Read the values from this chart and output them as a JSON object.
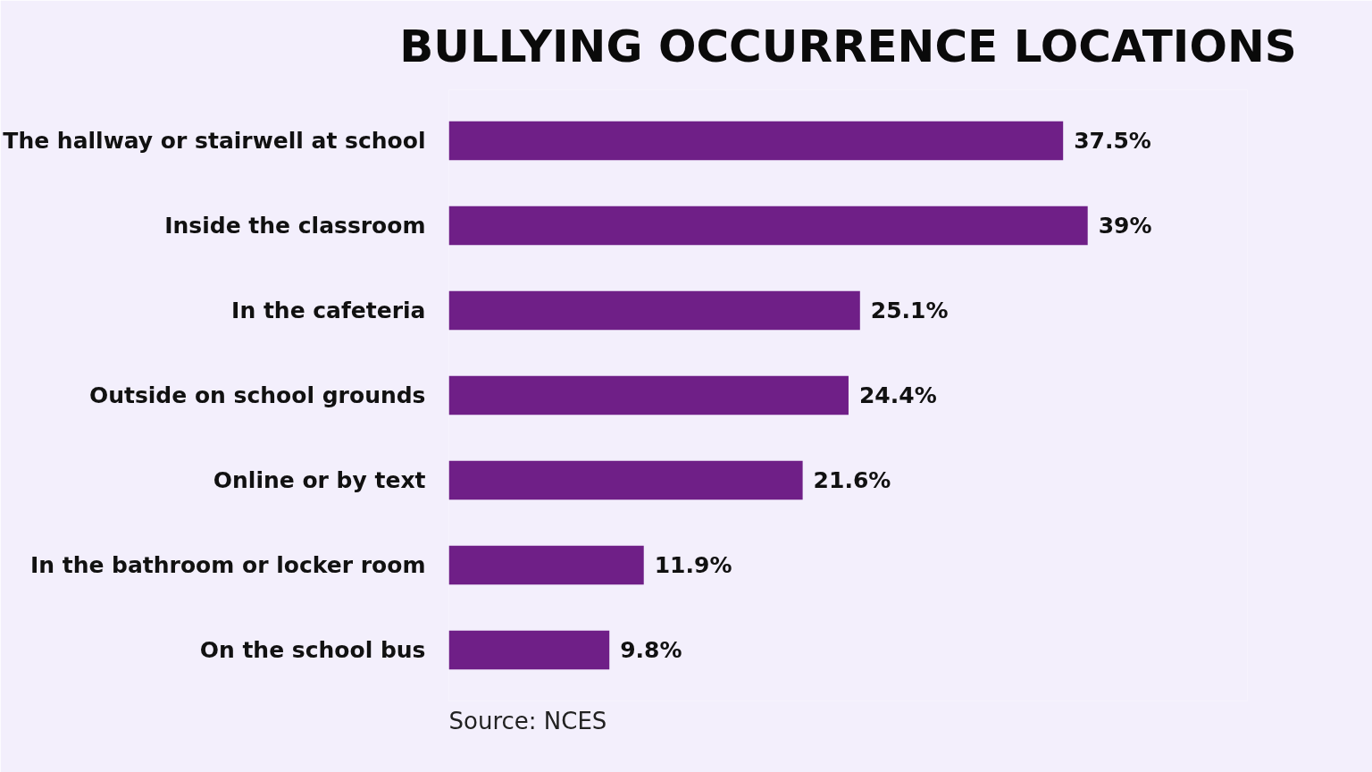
{
  "chart_data": {
    "type": "bar",
    "orientation": "horizontal",
    "title": "BULLYING OCCURRENCE LOCATIONS",
    "categories": [
      "The hallway or stairwell at school",
      "Inside the classroom",
      "In the cafeteria",
      "Outside on school grounds",
      "Online or by text",
      "In the bathroom or locker room",
      "On the school bus"
    ],
    "values": [
      37.5,
      39,
      25.1,
      24.4,
      21.6,
      11.9,
      9.8
    ],
    "value_labels": [
      "37.5%",
      "39%",
      "25.1%",
      "24.4%",
      "21.6%",
      "11.9%",
      "9.8%"
    ],
    "color": "#6f1f87",
    "grid": false,
    "annotations": [
      "Source: NCES"
    ]
  }
}
